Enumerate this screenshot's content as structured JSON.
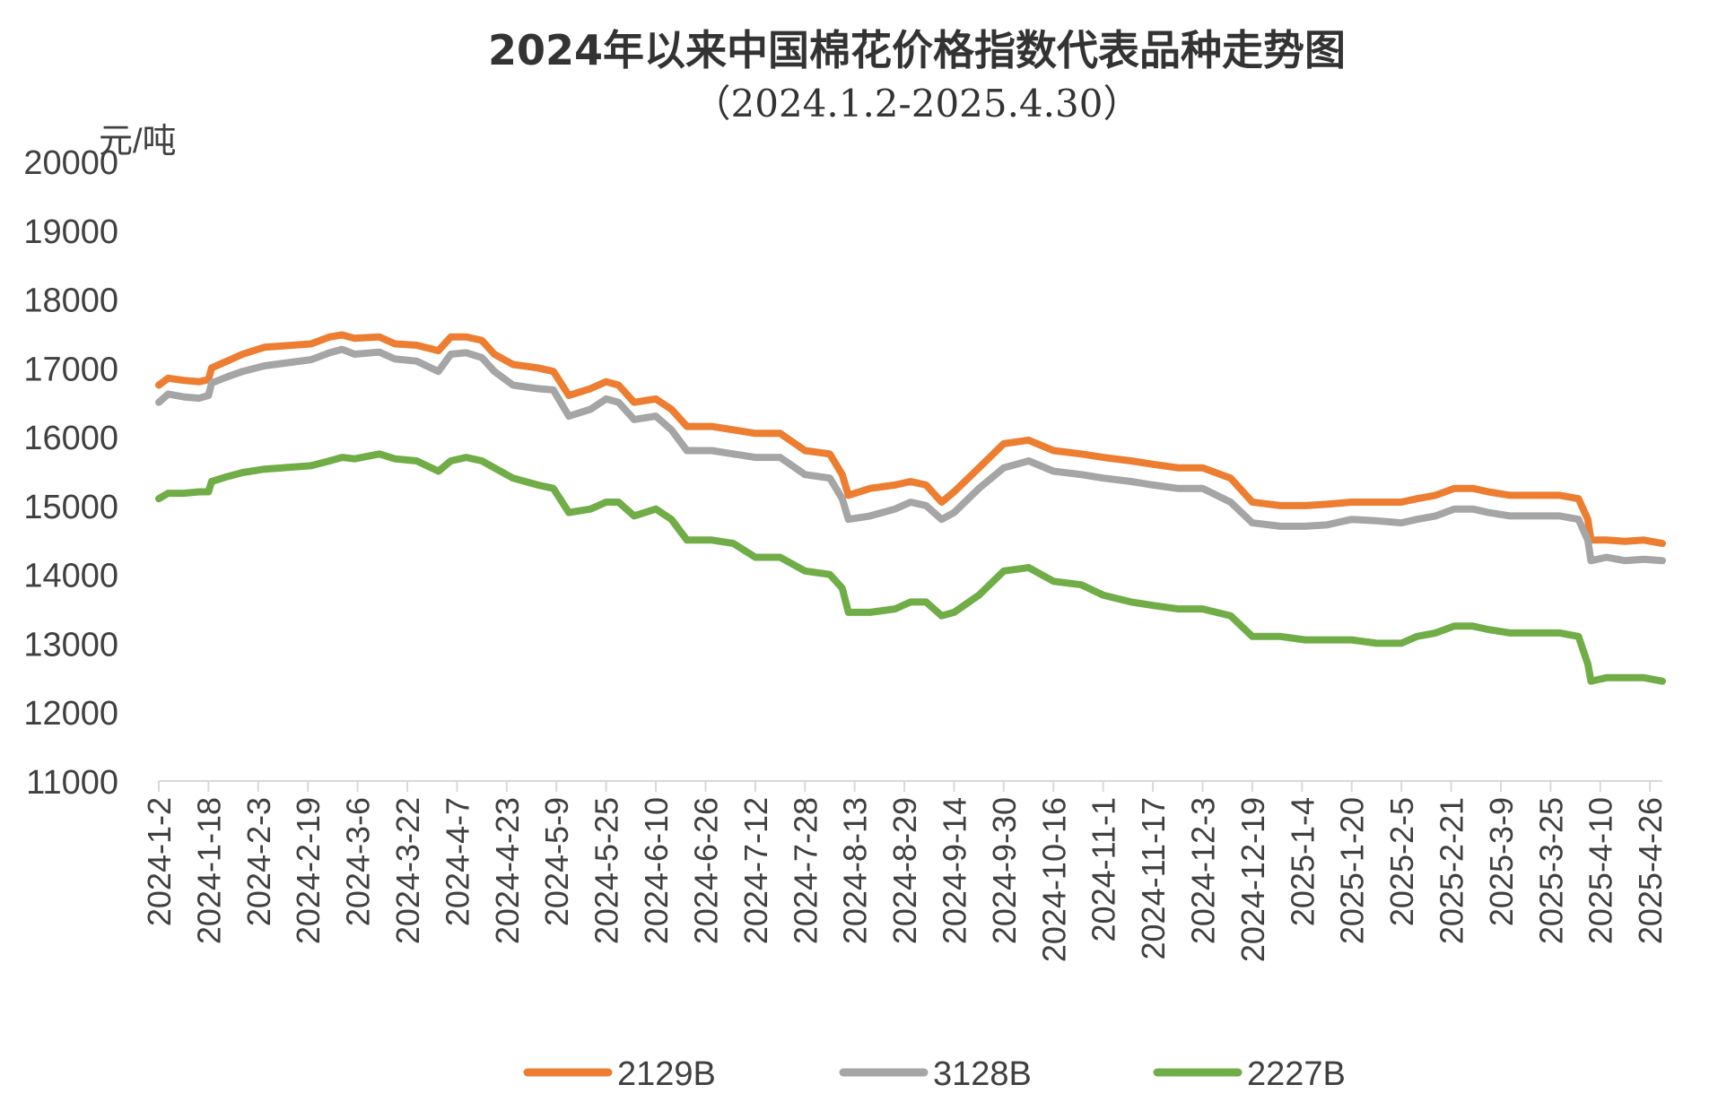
{
  "chart_data": {
    "type": "line",
    "title": "2024年以来中国棉花价格指数代表品种走势图",
    "subtitle": "（2024.1.2-2025.4.30）",
    "ylabel": "元/吨",
    "xlabel": "",
    "ylim": [
      11000,
      20000
    ],
    "yticks": [
      11000,
      12000,
      13000,
      14000,
      15000,
      16000,
      17000,
      18000,
      19000,
      20000
    ],
    "x_range": [
      "2024-01-02",
      "2025-04-30"
    ],
    "categories": [
      "2024-1-2",
      "2024-1-18",
      "2024-2-3",
      "2024-2-19",
      "2024-3-6",
      "2024-3-22",
      "2024-4-7",
      "2024-4-23",
      "2024-5-9",
      "2024-5-25",
      "2024-6-10",
      "2024-6-26",
      "2024-7-12",
      "2024-7-28",
      "2024-8-13",
      "2024-8-29",
      "2024-9-14",
      "2024-9-30",
      "2024-10-16",
      "2024-11-1",
      "2024-11-17",
      "2024-12-3",
      "2024-12-19",
      "2025-1-4",
      "2025-1-20",
      "2025-2-5",
      "2025-2-21",
      "2025-3-9",
      "2025-3-25",
      "2025-4-10",
      "2025-4-26"
    ],
    "grid": false,
    "legend_position": "bottom",
    "series": [
      {
        "name": "2129B",
        "color": "#ED7D31",
        "points": [
          [
            "2024-01-02",
            16750
          ],
          [
            "2024-01-05",
            16850
          ],
          [
            "2024-01-10",
            16820
          ],
          [
            "2024-01-15",
            16800
          ],
          [
            "2024-01-18",
            16830
          ],
          [
            "2024-01-19",
            17000
          ],
          [
            "2024-01-24",
            17100
          ],
          [
            "2024-01-29",
            17200
          ],
          [
            "2024-02-05",
            17300
          ],
          [
            "2024-02-20",
            17350
          ],
          [
            "2024-02-26",
            17450
          ],
          [
            "2024-03-01",
            17480
          ],
          [
            "2024-03-05",
            17430
          ],
          [
            "2024-03-13",
            17450
          ],
          [
            "2024-03-18",
            17350
          ],
          [
            "2024-03-25",
            17330
          ],
          [
            "2024-04-01",
            17250
          ],
          [
            "2024-04-05",
            17450
          ],
          [
            "2024-04-10",
            17450
          ],
          [
            "2024-04-15",
            17400
          ],
          [
            "2024-04-19",
            17200
          ],
          [
            "2024-04-25",
            17050
          ],
          [
            "2024-05-03",
            17000
          ],
          [
            "2024-05-08",
            16950
          ],
          [
            "2024-05-13",
            16600
          ],
          [
            "2024-05-20",
            16700
          ],
          [
            "2024-05-25",
            16800
          ],
          [
            "2024-05-29",
            16750
          ],
          [
            "2024-06-03",
            16500
          ],
          [
            "2024-06-10",
            16550
          ],
          [
            "2024-06-15",
            16400
          ],
          [
            "2024-06-20",
            16150
          ],
          [
            "2024-06-28",
            16150
          ],
          [
            "2024-07-05",
            16100
          ],
          [
            "2024-07-12",
            16050
          ],
          [
            "2024-07-20",
            16050
          ],
          [
            "2024-07-28",
            15800
          ],
          [
            "2024-08-05",
            15750
          ],
          [
            "2024-08-09",
            15450
          ],
          [
            "2024-08-11",
            15150
          ],
          [
            "2024-08-18",
            15250
          ],
          [
            "2024-08-26",
            15300
          ],
          [
            "2024-08-31",
            15350
          ],
          [
            "2024-09-05",
            15300
          ],
          [
            "2024-09-10",
            15050
          ],
          [
            "2024-09-14",
            15200
          ],
          [
            "2024-09-22",
            15550
          ],
          [
            "2024-09-30",
            15900
          ],
          [
            "2024-10-08",
            15950
          ],
          [
            "2024-10-16",
            15800
          ],
          [
            "2024-10-25",
            15750
          ],
          [
            "2024-11-01",
            15700
          ],
          [
            "2024-11-10",
            15650
          ],
          [
            "2024-11-17",
            15600
          ],
          [
            "2024-11-25",
            15550
          ],
          [
            "2024-12-03",
            15550
          ],
          [
            "2024-12-12",
            15400
          ],
          [
            "2024-12-19",
            15050
          ],
          [
            "2024-12-28",
            15000
          ],
          [
            "2025-01-05",
            15000
          ],
          [
            "2025-01-12",
            15020
          ],
          [
            "2025-01-20",
            15050
          ],
          [
            "2025-01-28",
            15050
          ],
          [
            "2025-02-05",
            15050
          ],
          [
            "2025-02-10",
            15100
          ],
          [
            "2025-02-16",
            15150
          ],
          [
            "2025-02-22",
            15250
          ],
          [
            "2025-02-28",
            15250
          ],
          [
            "2025-03-05",
            15200
          ],
          [
            "2025-03-12",
            15150
          ],
          [
            "2025-03-20",
            15150
          ],
          [
            "2025-03-28",
            15150
          ],
          [
            "2025-04-03",
            15100
          ],
          [
            "2025-04-06",
            14800
          ],
          [
            "2025-04-07",
            14500
          ],
          [
            "2025-04-12",
            14500
          ],
          [
            "2025-04-18",
            14480
          ],
          [
            "2025-04-24",
            14500
          ],
          [
            "2025-04-30",
            14450
          ]
        ]
      },
      {
        "name": "3128B",
        "color": "#A5A5A5",
        "points": [
          [
            "2024-01-02",
            16500
          ],
          [
            "2024-01-05",
            16620
          ],
          [
            "2024-01-10",
            16580
          ],
          [
            "2024-01-15",
            16560
          ],
          [
            "2024-01-18",
            16600
          ],
          [
            "2024-01-19",
            16780
          ],
          [
            "2024-01-24",
            16870
          ],
          [
            "2024-01-29",
            16950
          ],
          [
            "2024-02-05",
            17030
          ],
          [
            "2024-02-20",
            17120
          ],
          [
            "2024-02-26",
            17220
          ],
          [
            "2024-03-01",
            17270
          ],
          [
            "2024-03-05",
            17200
          ],
          [
            "2024-03-13",
            17230
          ],
          [
            "2024-03-18",
            17130
          ],
          [
            "2024-03-25",
            17100
          ],
          [
            "2024-04-01",
            16950
          ],
          [
            "2024-04-05",
            17200
          ],
          [
            "2024-04-10",
            17220
          ],
          [
            "2024-04-15",
            17150
          ],
          [
            "2024-04-19",
            16950
          ],
          [
            "2024-04-25",
            16750
          ],
          [
            "2024-05-03",
            16700
          ],
          [
            "2024-05-08",
            16680
          ],
          [
            "2024-05-13",
            16300
          ],
          [
            "2024-05-20",
            16400
          ],
          [
            "2024-05-25",
            16550
          ],
          [
            "2024-05-29",
            16500
          ],
          [
            "2024-06-03",
            16250
          ],
          [
            "2024-06-10",
            16300
          ],
          [
            "2024-06-15",
            16100
          ],
          [
            "2024-06-20",
            15800
          ],
          [
            "2024-06-28",
            15800
          ],
          [
            "2024-07-05",
            15750
          ],
          [
            "2024-07-12",
            15700
          ],
          [
            "2024-07-20",
            15700
          ],
          [
            "2024-07-28",
            15450
          ],
          [
            "2024-08-05",
            15400
          ],
          [
            "2024-08-09",
            15100
          ],
          [
            "2024-08-11",
            14800
          ],
          [
            "2024-08-18",
            14850
          ],
          [
            "2024-08-26",
            14950
          ],
          [
            "2024-08-31",
            15050
          ],
          [
            "2024-09-05",
            15000
          ],
          [
            "2024-09-10",
            14800
          ],
          [
            "2024-09-14",
            14900
          ],
          [
            "2024-09-22",
            15250
          ],
          [
            "2024-09-30",
            15550
          ],
          [
            "2024-10-08",
            15650
          ],
          [
            "2024-10-16",
            15500
          ],
          [
            "2024-10-25",
            15450
          ],
          [
            "2024-11-01",
            15400
          ],
          [
            "2024-11-10",
            15350
          ],
          [
            "2024-11-17",
            15300
          ],
          [
            "2024-11-25",
            15250
          ],
          [
            "2024-12-03",
            15250
          ],
          [
            "2024-12-12",
            15050
          ],
          [
            "2024-12-19",
            14750
          ],
          [
            "2024-12-28",
            14700
          ],
          [
            "2025-01-05",
            14700
          ],
          [
            "2025-01-12",
            14720
          ],
          [
            "2025-01-20",
            14800
          ],
          [
            "2025-01-28",
            14780
          ],
          [
            "2025-02-05",
            14750
          ],
          [
            "2025-02-10",
            14800
          ],
          [
            "2025-02-16",
            14850
          ],
          [
            "2025-02-22",
            14950
          ],
          [
            "2025-02-28",
            14950
          ],
          [
            "2025-03-05",
            14900
          ],
          [
            "2025-03-12",
            14850
          ],
          [
            "2025-03-20",
            14850
          ],
          [
            "2025-03-28",
            14850
          ],
          [
            "2025-04-03",
            14800
          ],
          [
            "2025-04-06",
            14500
          ],
          [
            "2025-04-07",
            14200
          ],
          [
            "2025-04-12",
            14250
          ],
          [
            "2025-04-18",
            14200
          ],
          [
            "2025-04-24",
            14220
          ],
          [
            "2025-04-30",
            14200
          ]
        ]
      },
      {
        "name": "2227B",
        "color": "#70AD47",
        "points": [
          [
            "2024-01-02",
            15100
          ],
          [
            "2024-01-05",
            15180
          ],
          [
            "2024-01-10",
            15180
          ],
          [
            "2024-01-15",
            15200
          ],
          [
            "2024-01-18",
            15200
          ],
          [
            "2024-01-19",
            15350
          ],
          [
            "2024-01-24",
            15420
          ],
          [
            "2024-01-29",
            15480
          ],
          [
            "2024-02-05",
            15530
          ],
          [
            "2024-02-20",
            15580
          ],
          [
            "2024-02-26",
            15650
          ],
          [
            "2024-03-01",
            15700
          ],
          [
            "2024-03-05",
            15680
          ],
          [
            "2024-03-13",
            15750
          ],
          [
            "2024-03-18",
            15680
          ],
          [
            "2024-03-25",
            15650
          ],
          [
            "2024-04-01",
            15500
          ],
          [
            "2024-04-05",
            15650
          ],
          [
            "2024-04-10",
            15700
          ],
          [
            "2024-04-15",
            15650
          ],
          [
            "2024-04-19",
            15550
          ],
          [
            "2024-04-25",
            15400
          ],
          [
            "2024-05-03",
            15300
          ],
          [
            "2024-05-08",
            15250
          ],
          [
            "2024-05-13",
            14900
          ],
          [
            "2024-05-20",
            14950
          ],
          [
            "2024-05-25",
            15050
          ],
          [
            "2024-05-29",
            15050
          ],
          [
            "2024-06-03",
            14850
          ],
          [
            "2024-06-10",
            14950
          ],
          [
            "2024-06-15",
            14800
          ],
          [
            "2024-06-20",
            14500
          ],
          [
            "2024-06-28",
            14500
          ],
          [
            "2024-07-05",
            14450
          ],
          [
            "2024-07-12",
            14250
          ],
          [
            "2024-07-20",
            14250
          ],
          [
            "2024-07-28",
            14050
          ],
          [
            "2024-08-05",
            14000
          ],
          [
            "2024-08-09",
            13800
          ],
          [
            "2024-08-11",
            13450
          ],
          [
            "2024-08-18",
            13450
          ],
          [
            "2024-08-26",
            13500
          ],
          [
            "2024-08-31",
            13600
          ],
          [
            "2024-09-05",
            13600
          ],
          [
            "2024-09-10",
            13400
          ],
          [
            "2024-09-14",
            13450
          ],
          [
            "2024-09-22",
            13700
          ],
          [
            "2024-09-30",
            14050
          ],
          [
            "2024-10-08",
            14100
          ],
          [
            "2024-10-16",
            13900
          ],
          [
            "2024-10-25",
            13850
          ],
          [
            "2024-11-01",
            13700
          ],
          [
            "2024-11-10",
            13600
          ],
          [
            "2024-11-17",
            13550
          ],
          [
            "2024-11-25",
            13500
          ],
          [
            "2024-12-03",
            13500
          ],
          [
            "2024-12-12",
            13400
          ],
          [
            "2024-12-19",
            13100
          ],
          [
            "2024-12-28",
            13100
          ],
          [
            "2025-01-05",
            13050
          ],
          [
            "2025-01-12",
            13050
          ],
          [
            "2025-01-20",
            13050
          ],
          [
            "2025-01-28",
            13000
          ],
          [
            "2025-02-05",
            13000
          ],
          [
            "2025-02-10",
            13100
          ],
          [
            "2025-02-16",
            13150
          ],
          [
            "2025-02-22",
            13250
          ],
          [
            "2025-02-28",
            13250
          ],
          [
            "2025-03-05",
            13200
          ],
          [
            "2025-03-12",
            13150
          ],
          [
            "2025-03-20",
            13150
          ],
          [
            "2025-03-28",
            13150
          ],
          [
            "2025-04-03",
            13100
          ],
          [
            "2025-04-06",
            12700
          ],
          [
            "2025-04-07",
            12450
          ],
          [
            "2025-04-12",
            12500
          ],
          [
            "2025-04-18",
            12500
          ],
          [
            "2025-04-24",
            12500
          ],
          [
            "2025-04-30",
            12450
          ]
        ]
      }
    ]
  }
}
